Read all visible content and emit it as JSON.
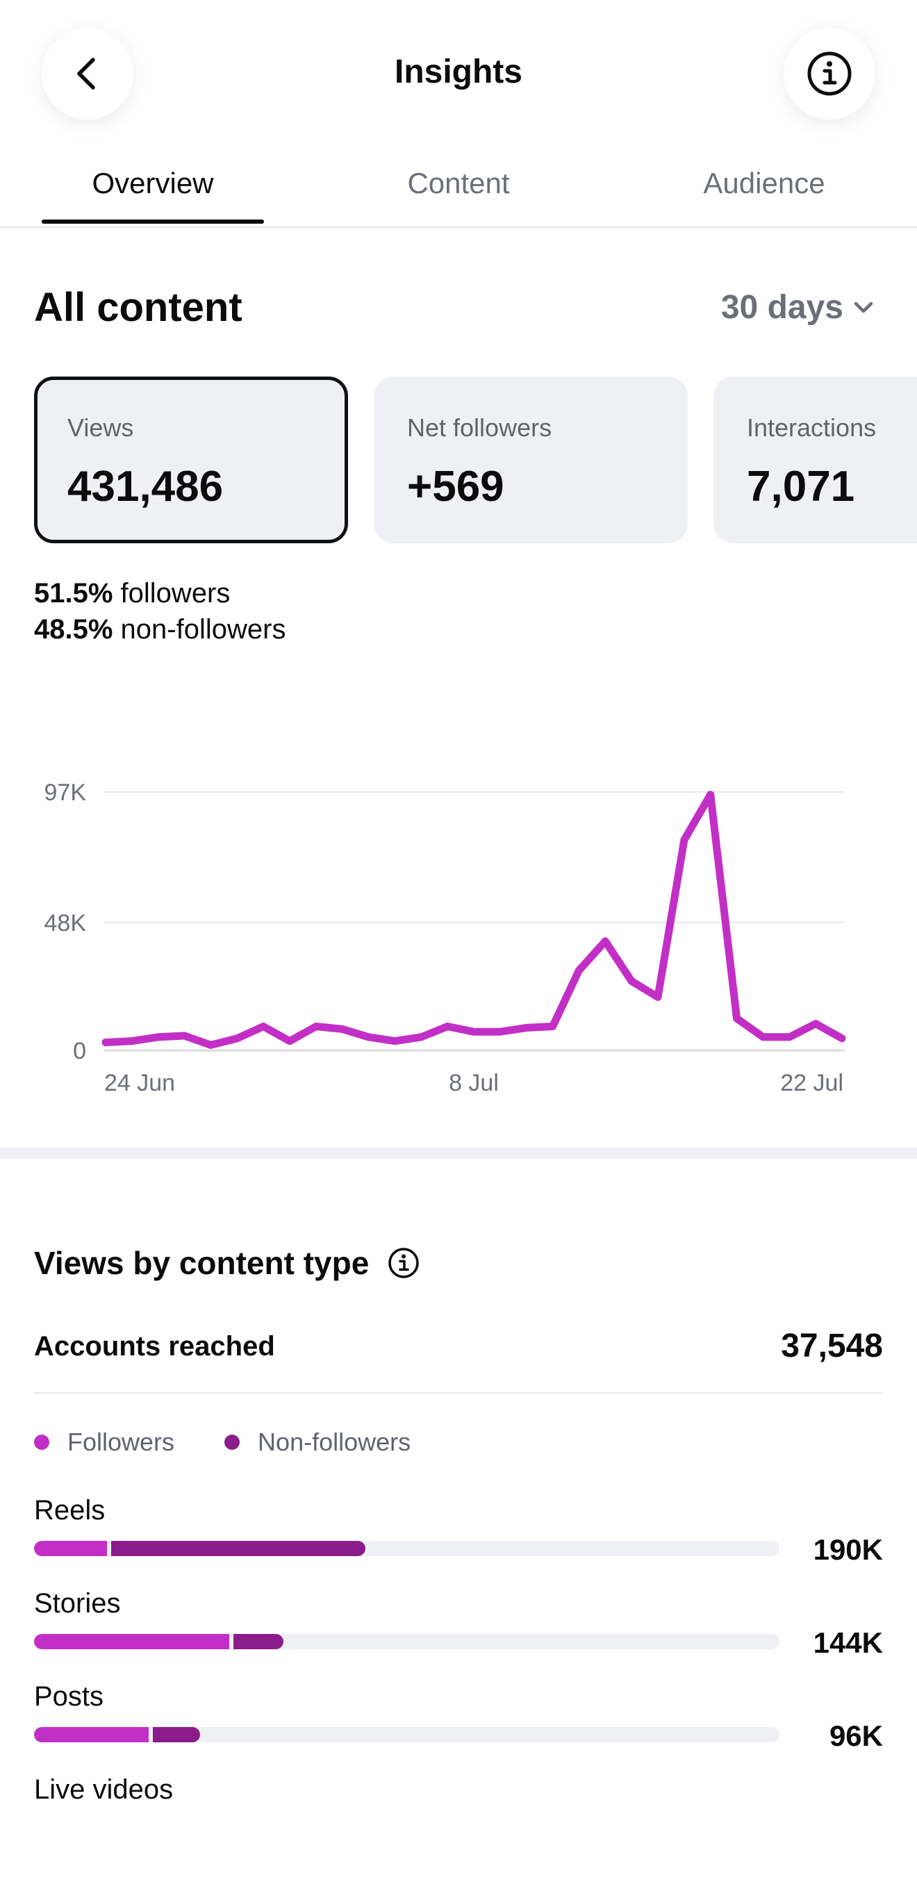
{
  "header": {
    "title": "Insights",
    "back_icon": "chevron-left-icon",
    "info_icon": "info-icon"
  },
  "tabs": [
    {
      "label": "Overview",
      "active": true
    },
    {
      "label": "Content",
      "active": false
    },
    {
      "label": "Audience",
      "active": false
    }
  ],
  "section": {
    "title": "All content",
    "period": "30 days"
  },
  "cards": [
    {
      "label": "Views",
      "value": "431,486",
      "selected": true
    },
    {
      "label": "Net followers",
      "value": "+569",
      "selected": false
    },
    {
      "label": "Interactions",
      "value": "7,071",
      "selected": false
    }
  ],
  "split": {
    "followers_pct": "51.5%",
    "followers_label": "followers",
    "nonfollowers_pct": "48.5%",
    "nonfollowers_label": "non-followers"
  },
  "chart_data": {
    "type": "line",
    "y_ticks": [
      {
        "value": 0,
        "label": "0"
      },
      {
        "value": 48000,
        "label": "48K"
      },
      {
        "value": 97000,
        "label": "97K"
      }
    ],
    "x_ticks": [
      {
        "index": 0,
        "label": "24 Jun"
      },
      {
        "index": 14,
        "label": "8 Jul"
      },
      {
        "index": 28,
        "label": "22 Jul"
      }
    ],
    "ylim": [
      0,
      97000
    ],
    "grid": true,
    "color": "#c22fc6",
    "series": [
      {
        "values": [
          3000,
          3500,
          5000,
          5500,
          2000,
          4500,
          9000,
          3500,
          9000,
          8000,
          5000,
          3500,
          5000,
          9000,
          7000,
          7000,
          8500,
          9000,
          30000,
          41000,
          26000,
          20000,
          79000,
          96000,
          12000,
          5000,
          5000,
          10000,
          4500
        ]
      }
    ]
  },
  "views_by_type": {
    "title": "Views by content type",
    "info_icon": "info-icon",
    "accounts_reached_label": "Accounts reached",
    "accounts_reached_value": "37,548",
    "legend": [
      {
        "label": "Followers",
        "color": "#c22fc6"
      },
      {
        "label": "Non-followers",
        "color": "#8b1c8c"
      }
    ],
    "items": [
      {
        "label": "Reels",
        "value": "190K",
        "followers_fraction": 0.098,
        "nonfollowers_fraction": 0.347
      },
      {
        "label": "Stories",
        "value": "144K",
        "followers_fraction": 0.262,
        "nonfollowers_fraction": 0.073
      },
      {
        "label": "Posts",
        "value": "96K",
        "followers_fraction": 0.154,
        "nonfollowers_fraction": 0.069
      },
      {
        "label": "Live videos",
        "value": "",
        "followers_fraction": 0,
        "nonfollowers_fraction": 0
      }
    ]
  }
}
